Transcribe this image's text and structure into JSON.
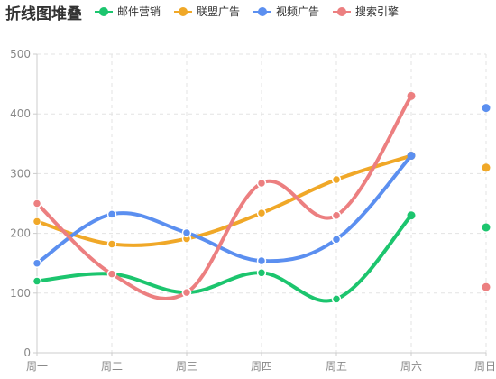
{
  "chart_data": {
    "type": "line",
    "title": "折线图堆叠",
    "categories": [
      "周一",
      "周二",
      "周三",
      "周四",
      "周五",
      "周六",
      "周日"
    ],
    "ylim": [
      0,
      500
    ],
    "yticks": [
      0,
      100,
      200,
      300,
      400,
      500
    ],
    "grid": true,
    "legend_position": "top",
    "series": [
      {
        "name": "邮件营销",
        "color": "#1cc56e",
        "values": [
          120,
          132,
          101,
          134,
          90,
          230,
          210
        ]
      },
      {
        "name": "联盟广告",
        "color": "#f0a828",
        "values": [
          220,
          182,
          191,
          234,
          290,
          330,
          310
        ]
      },
      {
        "name": "视频广告",
        "color": "#5b8ff0",
        "values": [
          150,
          232,
          201,
          154,
          190,
          330,
          410
        ]
      },
      {
        "name": "搜索引擎",
        "color": "#ec7f80",
        "values": [
          250,
          132,
          101,
          284,
          230,
          430,
          110
        ]
      }
    ]
  }
}
